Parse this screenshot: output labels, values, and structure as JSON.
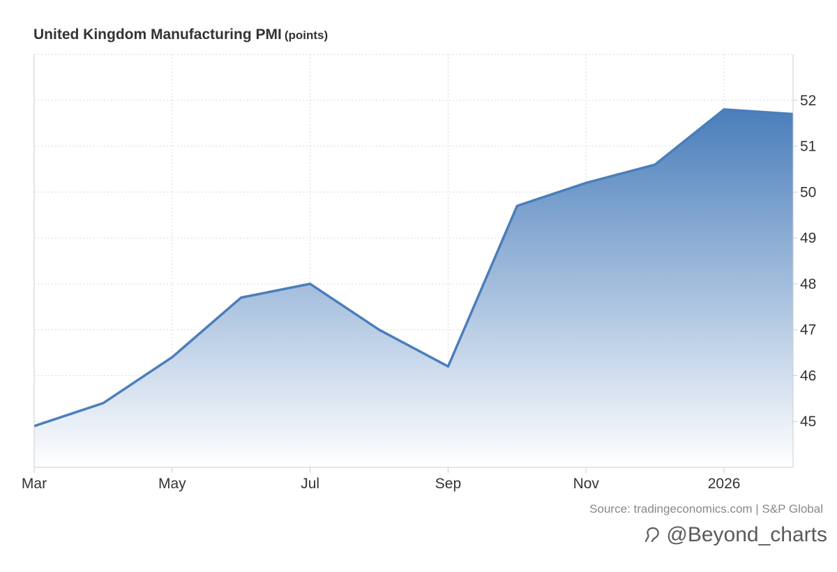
{
  "title": {
    "main": "United Kingdom Manufacturing PMI",
    "unit": "(points)"
  },
  "source": "Source: tradingeconomics.com | S&P Global",
  "watermark": "@Beyond_charts",
  "colors": {
    "line": "#4a7ebb",
    "fill_top": "#4a7ebb",
    "fill_bottom": "#ffffff",
    "grid": "#d9d9d9",
    "axis_text": "#333333"
  },
  "chart_data": {
    "type": "area",
    "x": [
      "2025-03",
      "2025-04",
      "2025-05",
      "2025-06",
      "2025-07",
      "2025-08",
      "2025-09",
      "2025-10",
      "2025-11",
      "2025-12",
      "2026-01",
      "2026-02"
    ],
    "series": [
      {
        "values": [
          44.9,
          45.4,
          46.4,
          47.7,
          48.0,
          47.0,
          46.2,
          49.7,
          50.2,
          50.6,
          51.8,
          51.7
        ]
      }
    ],
    "xticks": [
      {
        "index": 0,
        "label": "Mar"
      },
      {
        "index": 2,
        "label": "May"
      },
      {
        "index": 4,
        "label": "Jul"
      },
      {
        "index": 6,
        "label": "Sep"
      },
      {
        "index": 8,
        "label": "Nov"
      },
      {
        "index": 10,
        "label": "2026"
      }
    ],
    "yticks": [
      45,
      46,
      47,
      48,
      49,
      50,
      51,
      52
    ],
    "ylim": [
      44,
      53
    ],
    "grid": true,
    "y_axis_side": "right"
  }
}
